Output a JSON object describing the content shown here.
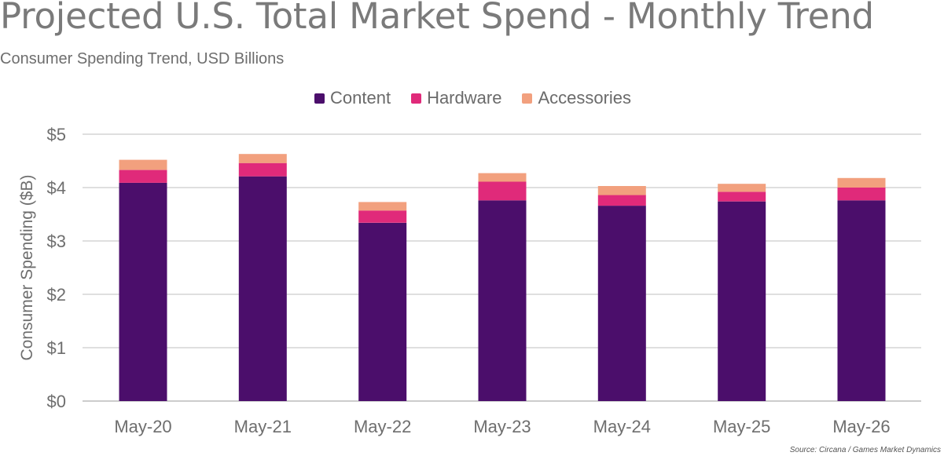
{
  "header": {
    "title": "Projected U.S. Total Market Spend - Monthly Trend",
    "subtitle": "Consumer Spending Trend, USD Billions"
  },
  "source": "Source: Circana / Games Market Dynamics",
  "colors": {
    "content": "#4b0e6b",
    "hardware": "#e02a7a",
    "accessories": "#f2a07e",
    "grid": "#bfbfbf",
    "text": "#6e6e6e"
  },
  "chart_data": {
    "type": "bar",
    "stacked": true,
    "title": "Projected U.S. Total Market Spend - Monthly Trend",
    "subtitle": "Consumer Spending Trend, USD Billions",
    "xlabel": "",
    "ylabel": "Consumer Spending ($B)",
    "categories": [
      "May-20",
      "May-21",
      "May-22",
      "May-23",
      "May-24",
      "May-25",
      "May-26"
    ],
    "series": [
      {
        "name": "Content",
        "color": "#4b0e6b",
        "values": [
          4.09,
          4.21,
          3.34,
          3.76,
          3.66,
          3.74,
          3.76
        ]
      },
      {
        "name": "Hardware",
        "color": "#e02a7a",
        "values": [
          0.24,
          0.25,
          0.23,
          0.35,
          0.2,
          0.18,
          0.24
        ]
      },
      {
        "name": "Accessories",
        "color": "#f2a07e",
        "values": [
          0.19,
          0.17,
          0.16,
          0.16,
          0.17,
          0.15,
          0.18
        ]
      }
    ],
    "ylim": [
      0,
      5
    ],
    "yticks": [
      0,
      1,
      2,
      3,
      4,
      5
    ],
    "ytick_labels": [
      "$0",
      "$1",
      "$2",
      "$3",
      "$4",
      "$5"
    ],
    "grid": true,
    "legend_position": "top-center"
  }
}
